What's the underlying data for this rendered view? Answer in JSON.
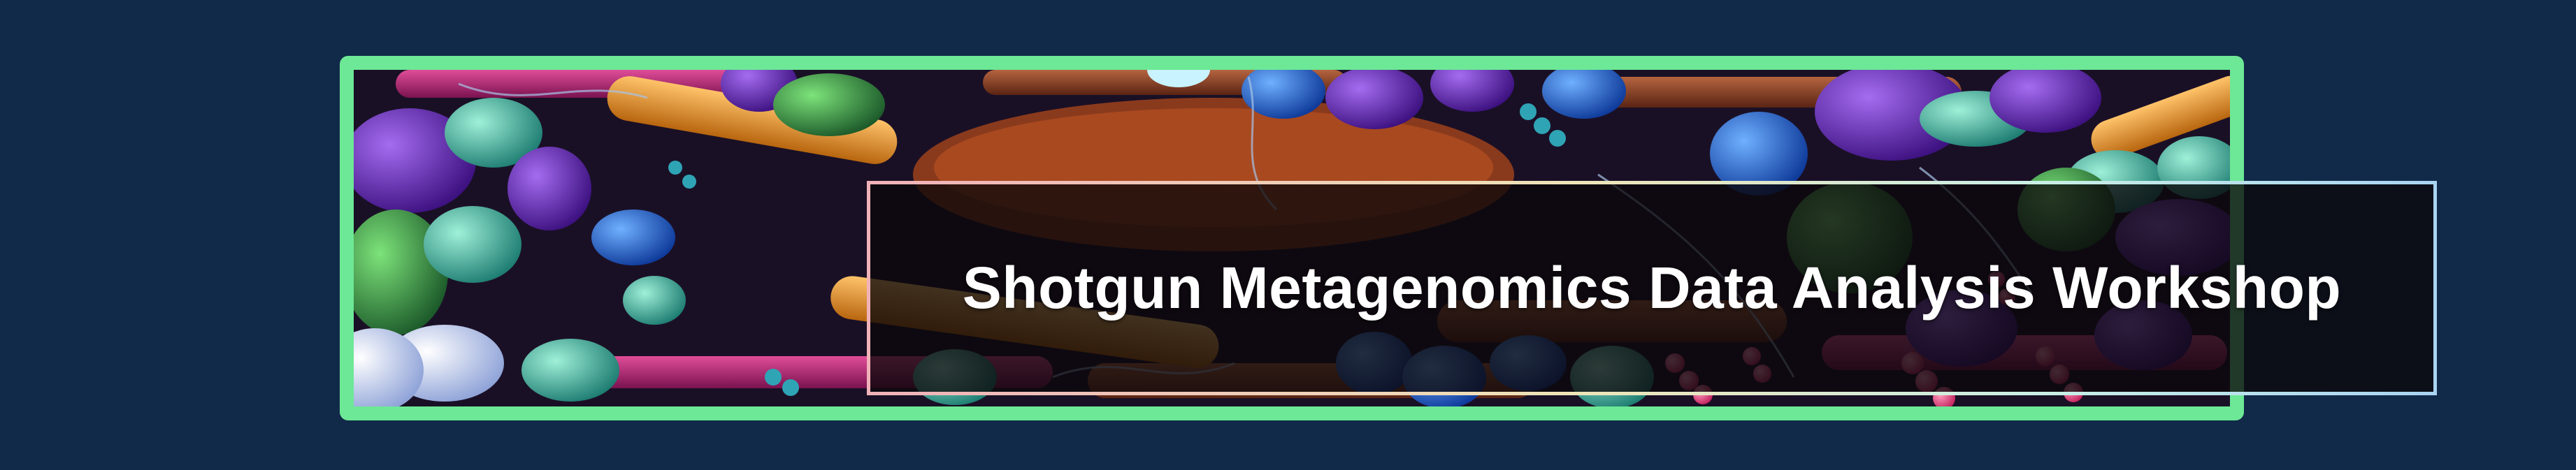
{
  "banner": {
    "title": "Shotgun Metagenomics Data Analysis Workshop",
    "frame_color": "#6de896",
    "page_background": "#112a49",
    "artwork_description_icon": "microbiome-illustration"
  }
}
